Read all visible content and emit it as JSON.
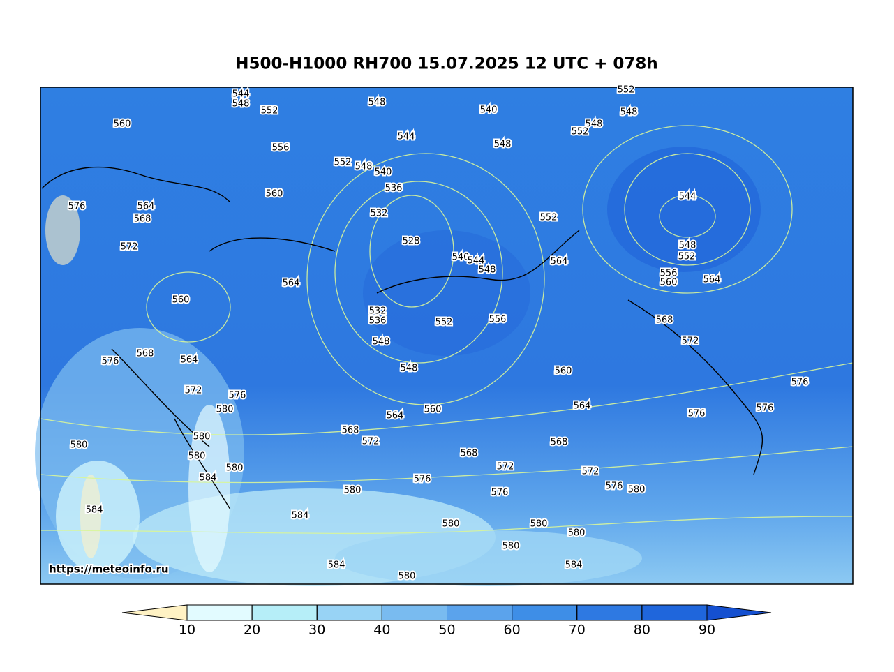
{
  "title": "H500-H1000 RH700 15.07.2025 12 UTC + 078h",
  "source_url": "https://meteoinfo.ru",
  "contour_labels": [
    "544",
    "548",
    "552",
    "560",
    "556",
    "548",
    "540",
    "544",
    "548",
    "552",
    "548",
    "548",
    "552",
    "552",
    "548",
    "540",
    "536",
    "560",
    "576",
    "564",
    "568",
    "572",
    "532",
    "528",
    "552",
    "544",
    "548",
    "552",
    "556",
    "560",
    "564",
    "540",
    "544",
    "548",
    "564",
    "564",
    "560",
    "532",
    "536",
    "552",
    "556",
    "568",
    "572",
    "548",
    "548",
    "568",
    "576",
    "564",
    "560",
    "572",
    "576",
    "580",
    "576",
    "564",
    "560",
    "564",
    "576",
    "576",
    "568",
    "572",
    "568",
    "580",
    "580",
    "580",
    "568",
    "572",
    "580",
    "584",
    "572",
    "576",
    "576",
    "580",
    "580",
    "576",
    "584",
    "584",
    "580",
    "580",
    "580",
    "580",
    "584",
    "584",
    "580"
  ],
  "colorbar": {
    "ticks": [
      10,
      20,
      30,
      40,
      50,
      60,
      70,
      80,
      90
    ],
    "colors": [
      "#fff2c4",
      "#e2fbff",
      "#b6eef8",
      "#98d3f5",
      "#79bbf0",
      "#5ba3ec",
      "#3e8ee7",
      "#2e79e2",
      "#1f66dc",
      "#1550d0"
    ]
  }
}
